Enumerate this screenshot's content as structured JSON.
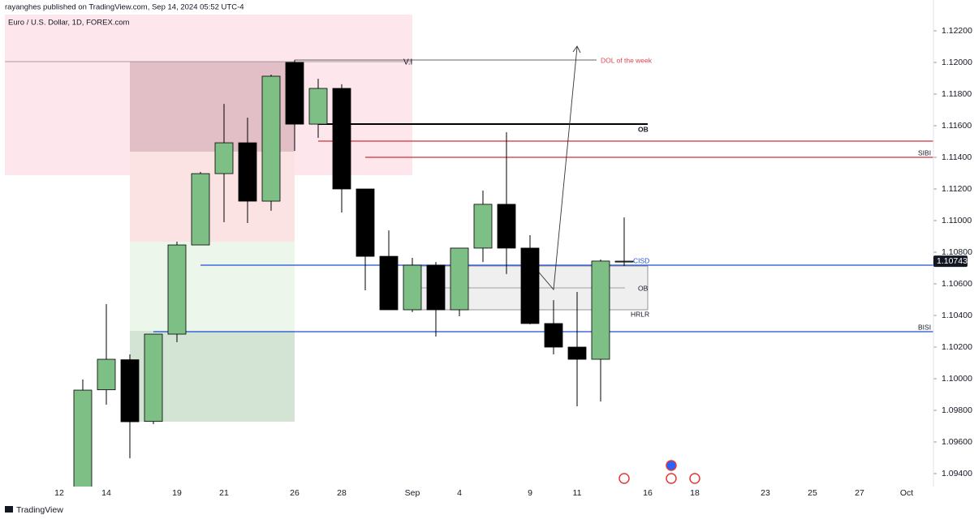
{
  "header": {
    "publisher": "rayanghes published on TradingView.com, Sep 14, 2024 05:52 UTC-4",
    "brand": "TradingView"
  },
  "chart_data": {
    "type": "candlestick",
    "title": "Euro / U.S. Dollar, 1D, FOREX.com",
    "categories": [
      "12",
      null,
      "14",
      null,
      null,
      "19",
      null,
      "21",
      null,
      null,
      "26",
      null,
      "28",
      null,
      null,
      "Sep",
      null,
      "4",
      null,
      null,
      "9",
      null,
      "11",
      null,
      null,
      "16",
      null,
      "18",
      null,
      null,
      "23",
      null,
      "25",
      null,
      "27",
      null,
      "Oct"
    ],
    "open": [
      null,
      1.093,
      1.0993,
      1.1012,
      1.0973,
      1.10282,
      1.10846,
      1.11297,
      1.11492,
      1.11123,
      1.12,
      1.1161,
      1.11836,
      1.112,
      1.10774,
      1.10436,
      1.10718,
      1.10436,
      1.10826,
      1.11103,
      1.10826,
      1.10349,
      1.102,
      1.10123,
      1.10738,
      null,
      null,
      null,
      null,
      null,
      null,
      null,
      null,
      null,
      null,
      null,
      null
    ],
    "high": [
      null,
      1.09995,
      1.10472,
      1.10154,
      1.10282,
      1.10867,
      1.11308,
      1.11738,
      1.11651,
      1.11923,
      1.12015,
      1.11897,
      1.11862,
      1.112,
      1.10938,
      1.10764,
      1.10738,
      1.10826,
      1.1119,
      1.11559,
      1.10908,
      1.10497,
      1.10549,
      1.10754,
      1.1102,
      null,
      null,
      null,
      null,
      null,
      null,
      null,
      null,
      null,
      null,
      null,
      null
    ],
    "low": [
      null,
      1.0927,
      1.09836,
      1.09497,
      1.09713,
      1.10231,
      1.10846,
      1.1099,
      1.10985,
      1.11062,
      1.11441,
      1.11523,
      1.11051,
      1.10559,
      1.10436,
      1.10421,
      1.10267,
      1.10395,
      1.10738,
      1.10662,
      1.10344,
      1.10154,
      1.09826,
      1.09856,
      1.10713,
      null,
      null,
      null,
      null,
      null,
      null,
      null,
      null,
      null,
      null,
      null,
      null
    ],
    "close": [
      null,
      1.09928,
      1.10123,
      1.09728,
      1.10282,
      1.10846,
      1.11297,
      1.11492,
      1.11123,
      1.11913,
      1.1161,
      1.11836,
      1.112,
      1.10774,
      1.10436,
      1.10718,
      1.10436,
      1.10826,
      1.11103,
      1.10826,
      1.10349,
      1.102,
      1.10123,
      1.10744,
      1.10743,
      null,
      null,
      null,
      null,
      null,
      null,
      null,
      null,
      null,
      null,
      null,
      null
    ],
    "up_color": "#7dbf85",
    "down_color": "#000000",
    "ylim": [
      1.09318,
      1.12395
    ],
    "yticks": [
      {
        "value": 1.094,
        "label": "1.09400"
      },
      {
        "value": 1.096,
        "label": "1.09600"
      },
      {
        "value": 1.098,
        "label": "1.09800"
      },
      {
        "value": 1.1,
        "label": "1.10000"
      },
      {
        "value": 1.102,
        "label": "1.10200"
      },
      {
        "value": 1.104,
        "label": "1.10400"
      },
      {
        "value": 1.106,
        "label": "1.10600"
      },
      {
        "value": 1.108,
        "label": "1.10800"
      },
      {
        "value": 1.11,
        "label": "1.11000"
      },
      {
        "value": 1.112,
        "label": "1.11200"
      },
      {
        "value": 1.114,
        "label": "1.11400"
      },
      {
        "value": 1.116,
        "label": "1.11600"
      },
      {
        "value": 1.118,
        "label": "1.11800"
      },
      {
        "value": 1.12,
        "label": "1.12000"
      },
      {
        "value": 1.122,
        "label": "1.12200"
      }
    ],
    "last_price": 1.10743,
    "annotations": [
      "V.I",
      "DOL of the week",
      "OB",
      "SIBI",
      "CISD",
      "OB",
      "HRLR",
      "BISI"
    ]
  }
}
